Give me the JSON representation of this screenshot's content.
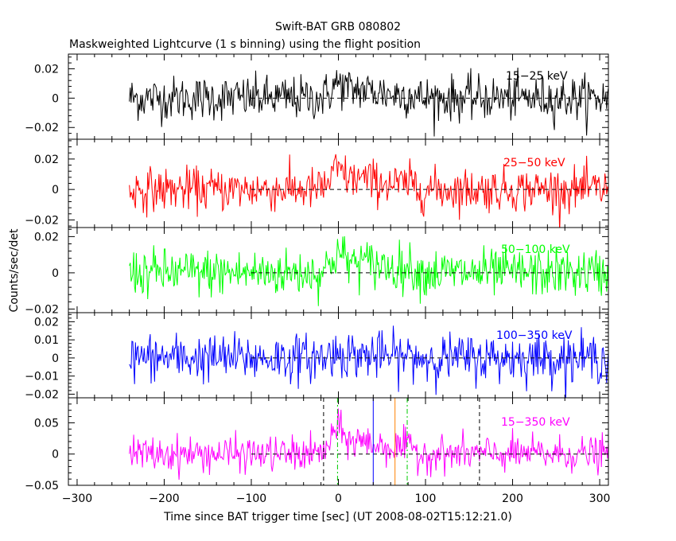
{
  "title": "Swift-BAT GRB 080802",
  "subtitle": "Maskweighted Lightcurve (1 s binning) using the flight position",
  "chart_data": {
    "type": "line",
    "x_range": [
      -310,
      310
    ],
    "data_x_range": [
      -240,
      310
    ],
    "xlabel": "Time since BAT trigger time [sec] (UT 2008-08-02T15:12:21.0)",
    "ylabel": "Counts/sec/det",
    "x_ticks": [
      -300,
      -200,
      -100,
      0,
      100,
      200,
      300
    ],
    "panels": [
      {
        "label": "15−25 keV",
        "color": "#000000",
        "ylim": [
          -0.028,
          0.03
        ],
        "y_ticks": [
          -0.02,
          0,
          0.02
        ],
        "y_tick_labels": [
          "−0.02",
          "0",
          "0.02"
        ],
        "noise_sigma": 0.0075,
        "peak": 0.01,
        "peak_center": 0,
        "peak_width": 15
      },
      {
        "label": "25−50 keV",
        "color": "#ff0000",
        "ylim": [
          -0.025,
          0.033
        ],
        "y_ticks": [
          -0.02,
          0,
          0.02
        ],
        "y_tick_labels": [
          "−0.02",
          "0",
          "0.02"
        ],
        "noise_sigma": 0.007,
        "peak": 0.013,
        "peak_center": 0,
        "peak_width": 14
      },
      {
        "label": "50−100 keV",
        "color": "#00ff00",
        "ylim": [
          -0.022,
          0.025
        ],
        "y_ticks": [
          -0.02,
          0,
          0.02
        ],
        "y_tick_labels": [
          "−0.02",
          "0",
          "0.02"
        ],
        "noise_sigma": 0.0065,
        "peak": 0.011,
        "peak_center": 0,
        "peak_width": 14
      },
      {
        "label": "100−350 keV",
        "color": "#0000ff",
        "ylim": [
          -0.022,
          0.025
        ],
        "y_ticks": [
          -0.02,
          -0.01,
          0,
          0.01,
          0.02
        ],
        "y_tick_labels": [
          "−0.02",
          "−0.01",
          "0",
          "0.01",
          "0.02"
        ],
        "noise_sigma": 0.0065,
        "peak": 0.003,
        "peak_center": 0,
        "peak_width": 14
      },
      {
        "label": "15−350 keV",
        "color": "#ff00ff",
        "ylim": [
          -0.05,
          0.09
        ],
        "y_ticks": [
          -0.05,
          0,
          0.05
        ],
        "y_tick_labels": [
          "−0.05",
          "0",
          "0.05"
        ],
        "noise_sigma": 0.014,
        "peak": 0.04,
        "peak_center": 0,
        "peak_width": 13,
        "markers": [
          {
            "x": -17,
            "color": "#000000",
            "style": "dashed"
          },
          {
            "x": 162,
            "color": "#000000",
            "style": "dashed"
          },
          {
            "x": -1,
            "color": "#00cc00",
            "style": "dashdot"
          },
          {
            "x": 79,
            "color": "#00cc00",
            "style": "dashdot"
          },
          {
            "x": 40,
            "color": "#0000ff",
            "style": "solid"
          },
          {
            "x": 65,
            "color": "#ff8000",
            "style": "solid"
          }
        ]
      }
    ]
  }
}
